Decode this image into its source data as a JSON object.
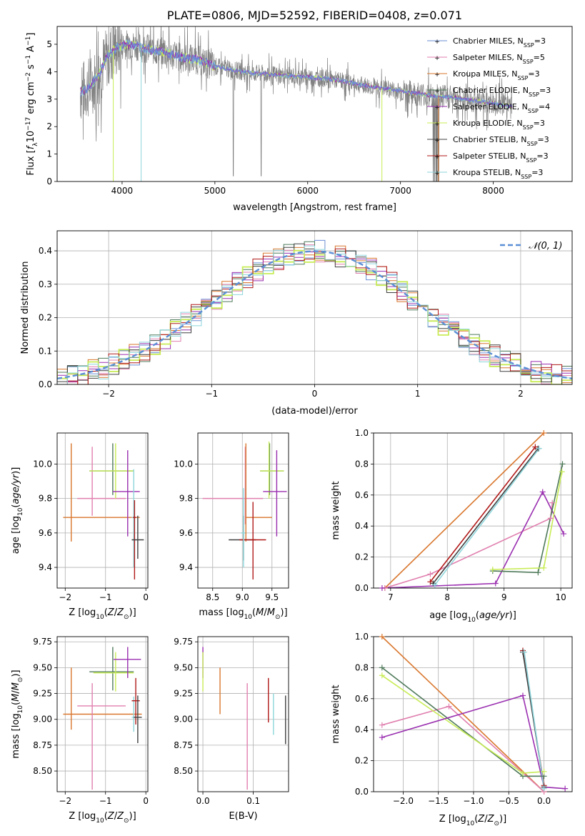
{
  "title": "PLATE=0806, MJD=52592, FIBERID=0408, z=0.071",
  "colors": {
    "Chabrier MILES": "#6b8fd6",
    "Salpeter MILES": "#e07fae",
    "Kroupa MILES": "#d9772e",
    "Chabrier ELODIE": "#4f7a5a",
    "Salpeter ELODIE": "#9a2fb0",
    "Kroupa ELODIE": "#c8ec56",
    "Chabrier STELIB": "#404040",
    "Salpeter STELIB": "#b01818",
    "Kroupa STELIB": "#8ed6dc",
    "data": "#808080",
    "gaussian": "#5b8fd6",
    "grid": "#b0b0b0"
  },
  "chart_data": [
    {
      "type": "line",
      "panel": "spectrum",
      "xlabel": "wavelength [Angstrom, rest frame]",
      "ylabel": "Flux [fλ10⁻¹⁷ erg cm⁻² s⁻¹ A⁻¹]",
      "xlim": [
        3300,
        8850
      ],
      "ylim": [
        0,
        5.65
      ],
      "xticks": [
        4000,
        5000,
        6000,
        7000,
        8000
      ],
      "yticks": [
        0,
        1,
        2,
        3,
        4,
        5
      ],
      "continuum": [
        [
          3550,
          3.25
        ],
        [
          3650,
          3.45
        ],
        [
          3750,
          3.9
        ],
        [
          3850,
          4.6
        ],
        [
          3950,
          4.9
        ],
        [
          4050,
          5.0
        ],
        [
          4150,
          4.95
        ],
        [
          4250,
          4.85
        ],
        [
          4400,
          4.75
        ],
        [
          4600,
          4.55
        ],
        [
          4800,
          4.45
        ],
        [
          5000,
          4.2
        ],
        [
          5200,
          4.05
        ],
        [
          5400,
          3.95
        ],
        [
          5600,
          3.9
        ],
        [
          5800,
          3.85
        ],
        [
          6000,
          3.8
        ],
        [
          6200,
          3.75
        ],
        [
          6400,
          3.65
        ],
        [
          6600,
          3.5
        ],
        [
          6800,
          3.4
        ],
        [
          7000,
          3.3
        ],
        [
          7200,
          3.2
        ],
        [
          7400,
          3.1
        ],
        [
          7600,
          3.05
        ],
        [
          7800,
          2.95
        ],
        [
          8000,
          2.85
        ],
        [
          8200,
          2.72
        ]
      ],
      "legend": [
        {
          "key": "Chabrier MILES",
          "base": "Chabrier MILES, N",
          "sub": "SSP",
          "n": "=3"
        },
        {
          "key": "Salpeter MILES",
          "base": "Salpeter MILES, N",
          "sub": "SSP",
          "n": "=5"
        },
        {
          "key": "Kroupa MILES",
          "base": "Kroupa MILES, N",
          "sub": "SSP",
          "n": "=3"
        },
        {
          "key": "Chabrier ELODIE",
          "base": "Chabrier ELODIE, N",
          "sub": "SSP",
          "n": "=3"
        },
        {
          "key": "Salpeter ELODIE",
          "base": "Salpeter ELODIE, N",
          "sub": "SSP",
          "n": "=4"
        },
        {
          "key": "Kroupa ELODIE",
          "base": "Kroupa ELODIE, N",
          "sub": "SSP",
          "n": "=3"
        },
        {
          "key": "Chabrier STELIB",
          "base": "Chabrier STELIB, N",
          "sub": "SSP",
          "n": "=3"
        },
        {
          "key": "Salpeter STELIB",
          "base": "Salpeter STELIB, N",
          "sub": "SSP",
          "n": "=3"
        },
        {
          "key": "Kroupa STELIB",
          "base": "Kroupa STELIB, N",
          "sub": "SSP",
          "n": "=3"
        }
      ]
    },
    {
      "type": "line",
      "panel": "residuals",
      "xlabel": "(data-model)/error",
      "ylabel": "Normed distribution",
      "xlim": [
        -2.5,
        2.5
      ],
      "ylim": [
        0,
        0.46
      ],
      "xticks": [
        -2,
        -1,
        0,
        1,
        2
      ],
      "yticks": [
        0.0,
        0.1,
        0.2,
        0.3,
        0.4
      ],
      "legend": "𝒩(0, 1)",
      "bin_width": 0.1
    },
    {
      "type": "scatter",
      "panel": "Z-age",
      "xlabel": "Z [log10(Z/Z⊙)]",
      "ylabel": "age  [log10(age/yr)]",
      "xlim": [
        -2.2,
        0.05
      ],
      "ylim": [
        9.28,
        10.18
      ],
      "xticks": [
        -2,
        -1,
        0
      ],
      "yticks": [
        9.4,
        9.6,
        9.8,
        10.0
      ],
      "points": [
        {
          "key": "Kroupa MILES",
          "x": -1.85,
          "y": 9.69,
          "xlo": -2.05,
          "xhi": -0.15,
          "ylo": 9.55,
          "yhi": 10.12
        },
        {
          "key": "Salpeter MILES",
          "x": -1.33,
          "y": 9.8,
          "xlo": -1.7,
          "xhi": -0.5,
          "ylo": 9.7,
          "yhi": 10.1
        },
        {
          "key": "Chabrier ELODIE",
          "x": -0.82,
          "y": 9.96,
          "xlo": -1.4,
          "xhi": -0.3,
          "ylo": 9.82,
          "yhi": 10.12
        },
        {
          "key": "Kroupa ELODIE",
          "x": -0.75,
          "y": 9.96,
          "xlo": -1.4,
          "xhi": -0.3,
          "ylo": 9.8,
          "yhi": 10.12
        },
        {
          "key": "Salpeter ELODIE",
          "x": -0.45,
          "y": 9.84,
          "xlo": -0.82,
          "xhi": -0.15,
          "ylo": 9.58,
          "yhi": 10.08
        },
        {
          "key": "Kroupa STELIB",
          "x": -0.3,
          "y": 9.69,
          "xlo": -0.35,
          "xhi": -0.25,
          "ylo": 9.4,
          "yhi": 9.97
        },
        {
          "key": "Salpeter STELIB",
          "x": -0.28,
          "y": 9.69,
          "xlo": -0.32,
          "xhi": -0.24,
          "ylo": 9.33,
          "yhi": 9.79
        },
        {
          "key": "Chabrier STELIB",
          "x": -0.2,
          "y": 9.56,
          "xlo": -0.35,
          "xhi": -0.05,
          "ylo": 9.45,
          "yhi": 9.7
        }
      ]
    },
    {
      "type": "scatter",
      "panel": "mass-age",
      "xlabel": "mass [log10(M/M⊙)]",
      "ylabel": "",
      "xlim": [
        8.25,
        9.78
      ],
      "ylim": [
        9.28,
        10.18
      ],
      "xticks": [
        8.5,
        9.0,
        9.5
      ],
      "yticks": [
        9.4,
        9.6,
        9.8,
        10.0
      ],
      "points": [
        {
          "key": "Salpeter MILES",
          "x": 9.05,
          "y": 9.8,
          "xlo": 8.33,
          "xhi": 9.35,
          "ylo": 9.65,
          "yhi": 10.1
        },
        {
          "key": "Kroupa MILES",
          "x": 9.06,
          "y": 9.69,
          "xlo": 9.05,
          "xhi": 9.5,
          "ylo": 9.55,
          "yhi": 10.12
        },
        {
          "key": "Chabrier STELIB",
          "x": 9.02,
          "y": 9.56,
          "xlo": 8.77,
          "xhi": 9.23,
          "ylo": 9.44,
          "yhi": 9.7
        },
        {
          "key": "Salpeter STELIB",
          "x": 9.18,
          "y": 9.56,
          "xlo": 8.95,
          "xhi": 9.4,
          "ylo": 9.33,
          "yhi": 9.78
        },
        {
          "key": "Kroupa STELIB",
          "x": 9.02,
          "y": 9.6,
          "xlo": 8.98,
          "xhi": 9.05,
          "ylo": 9.4,
          "yhi": 9.86
        },
        {
          "key": "Chabrier ELODIE",
          "x": 9.46,
          "y": 9.96,
          "xlo": 9.3,
          "xhi": 9.7,
          "ylo": 9.82,
          "yhi": 10.12
        },
        {
          "key": "Kroupa ELODIE",
          "x": 9.45,
          "y": 9.96,
          "xlo": 9.3,
          "xhi": 9.7,
          "ylo": 9.8,
          "yhi": 10.13
        },
        {
          "key": "Salpeter ELODIE",
          "x": 9.58,
          "y": 9.84,
          "xlo": 9.35,
          "xhi": 9.75,
          "ylo": 9.58,
          "yhi": 10.08
        }
      ]
    },
    {
      "type": "line",
      "panel": "age-weight",
      "xlabel": "age  [log10(age/yr)]",
      "ylabel": "mass weight",
      "xlim": [
        6.7,
        10.2
      ],
      "ylim": [
        0.0,
        1.0
      ],
      "xticks": [
        7,
        8,
        9,
        10
      ],
      "yticks": [
        0.0,
        0.2,
        0.4,
        0.6,
        0.8,
        1.0
      ],
      "series": [
        {
          "key": "Kroupa MILES",
          "points": [
            [
              6.9,
              0.0
            ],
            [
              9.7,
              1.0
            ]
          ]
        },
        {
          "key": "Salpeter MILES",
          "points": [
            [
              6.9,
              0.0
            ],
            [
              7.7,
              0.09
            ],
            [
              9.82,
              0.45
            ],
            [
              9.85,
              0.55
            ]
          ]
        },
        {
          "key": "Salpeter STELIB",
          "points": [
            [
              7.7,
              0.04
            ],
            [
              9.55,
              0.91
            ]
          ]
        },
        {
          "key": "Chabrier STELIB",
          "points": [
            [
              7.75,
              0.03
            ],
            [
              9.6,
              0.9
            ]
          ]
        },
        {
          "key": "Kroupa STELIB",
          "points": [
            [
              7.78,
              0.02
            ],
            [
              9.62,
              0.9
            ]
          ]
        },
        {
          "key": "Salpeter ELODIE",
          "points": [
            [
              6.85,
              0.0
            ],
            [
              8.85,
              0.03
            ],
            [
              9.68,
              0.62
            ],
            [
              10.05,
              0.35
            ]
          ]
        },
        {
          "key": "Chabrier ELODIE",
          "points": [
            [
              8.8,
              0.11
            ],
            [
              9.6,
              0.1
            ],
            [
              10.03,
              0.8
            ]
          ]
        },
        {
          "key": "Kroupa ELODIE",
          "points": [
            [
              8.8,
              0.12
            ],
            [
              9.7,
              0.13
            ],
            [
              10.02,
              0.75
            ]
          ]
        }
      ]
    },
    {
      "type": "scatter",
      "panel": "Z-mass",
      "xlabel": "Z [log10(Z/Z⊙)]",
      "ylabel": "mass [log10(M/M⊙)]",
      "xlim": [
        -2.2,
        0.05
      ],
      "ylim": [
        8.3,
        9.8
      ],
      "xticks": [
        -2,
        -1,
        0
      ],
      "yticks": [
        8.5,
        8.75,
        9.0,
        9.25,
        9.5,
        9.75
      ],
      "points": [
        {
          "key": "Kroupa MILES",
          "x": -1.85,
          "y": 9.05,
          "xlo": -2.05,
          "xhi": -0.1,
          "ylo": 8.9,
          "yhi": 9.5
        },
        {
          "key": "Salpeter MILES",
          "x": -1.33,
          "y": 9.13,
          "xlo": -1.7,
          "xhi": -0.5,
          "ylo": 8.32,
          "yhi": 9.35
        },
        {
          "key": "Chabrier ELODIE",
          "x": -0.82,
          "y": 9.46,
          "xlo": -1.4,
          "xhi": -0.3,
          "ylo": 9.28,
          "yhi": 9.7
        },
        {
          "key": "Kroupa ELODIE",
          "x": -0.75,
          "y": 9.45,
          "xlo": -1.3,
          "xhi": -0.3,
          "ylo": 9.27,
          "yhi": 9.65
        },
        {
          "key": "Salpeter ELODIE",
          "x": -0.45,
          "y": 9.58,
          "xlo": -0.8,
          "xhi": -0.12,
          "ylo": 9.4,
          "yhi": 9.7
        },
        {
          "key": "Kroupa STELIB",
          "x": -0.3,
          "y": 9.02,
          "xlo": -0.35,
          "xhi": -0.25,
          "ylo": 8.88,
          "yhi": 9.22
        },
        {
          "key": "Salpeter STELIB",
          "x": -0.25,
          "y": 9.18,
          "xlo": -0.35,
          "xhi": -0.15,
          "ylo": 8.95,
          "yhi": 9.4
        },
        {
          "key": "Chabrier STELIB",
          "x": -0.2,
          "y": 9.02,
          "xlo": -0.3,
          "xhi": -0.1,
          "ylo": 8.77,
          "yhi": 9.23
        }
      ]
    },
    {
      "type": "scatter",
      "panel": "EBV-mass",
      "xlabel": "E(B-V)",
      "ylabel": "",
      "xlim": [
        -0.01,
        0.17
      ],
      "ylim": [
        8.3,
        9.8
      ],
      "xticks": [
        0.0,
        0.1
      ],
      "yticks": [
        8.5,
        8.75,
        9.0,
        9.25,
        9.5,
        9.75
      ],
      "points": [
        {
          "key": "Salpeter ELODIE",
          "x": 0.0,
          "y": 9.58,
          "ylo": 9.4,
          "yhi": 9.7
        },
        {
          "key": "Kroupa ELODIE",
          "x": 0.0,
          "y": 9.45,
          "ylo": 9.27,
          "yhi": 9.65
        },
        {
          "key": "Kroupa MILES",
          "x": 0.034,
          "y": 9.05,
          "ylo": 9.05,
          "yhi": 9.5
        },
        {
          "key": "Salpeter MILES",
          "x": 0.088,
          "y": 8.8,
          "ylo": 8.32,
          "yhi": 9.35
        },
        {
          "key": "Salpeter STELIB",
          "x": 0.13,
          "y": 9.18,
          "ylo": 8.97,
          "yhi": 9.4
        },
        {
          "key": "Kroupa STELIB",
          "x": 0.14,
          "y": 9.05,
          "ylo": 8.85,
          "yhi": 9.25
        },
        {
          "key": "Chabrier STELIB",
          "x": 0.164,
          "y": 8.98,
          "ylo": 8.76,
          "yhi": 9.23
        }
      ]
    },
    {
      "type": "line",
      "panel": "Z-weight",
      "xlabel": "Z [log10(Z/Z⊙)]",
      "ylabel": "mass weight",
      "xlim": [
        -2.42,
        0.4
      ],
      "ylim": [
        0.0,
        1.0
      ],
      "xticks": [
        -2.0,
        -1.5,
        -1.0,
        -0.5,
        0.0
      ],
      "yticks": [
        0.0,
        0.2,
        0.4,
        0.6,
        0.8,
        1.0
      ],
      "series": [
        {
          "key": "Kroupa MILES",
          "points": [
            [
              -2.3,
              1.0
            ],
            [
              0.0,
              0.0
            ]
          ]
        },
        {
          "key": "Salpeter MILES",
          "points": [
            [
              -2.3,
              0.43
            ],
            [
              -1.35,
              0.55
            ],
            [
              0.0,
              0.0
            ]
          ]
        },
        {
          "key": "Chabrier ELODIE",
          "points": [
            [
              -2.3,
              0.8
            ],
            [
              -0.3,
              0.1
            ],
            [
              0.0,
              0.1
            ]
          ]
        },
        {
          "key": "Kroupa ELODIE",
          "points": [
            [
              -2.3,
              0.75
            ],
            [
              -0.3,
              0.12
            ],
            [
              0.0,
              0.13
            ]
          ]
        },
        {
          "key": "Salpeter ELODIE",
          "points": [
            [
              -2.3,
              0.35
            ],
            [
              -0.3,
              0.62
            ],
            [
              0.0,
              0.03
            ],
            [
              0.3,
              0.02
            ]
          ]
        },
        {
          "key": "Salpeter STELIB",
          "points": [
            [
              -0.3,
              0.91
            ],
            [
              0.0,
              0.04
            ]
          ]
        },
        {
          "key": "Chabrier STELIB",
          "points": [
            [
              -0.3,
              0.9
            ],
            [
              0.0,
              0.03
            ]
          ]
        },
        {
          "key": "Kroupa STELIB",
          "points": [
            [
              -0.28,
              0.9
            ],
            [
              0.0,
              0.02
            ]
          ]
        }
      ]
    }
  ]
}
